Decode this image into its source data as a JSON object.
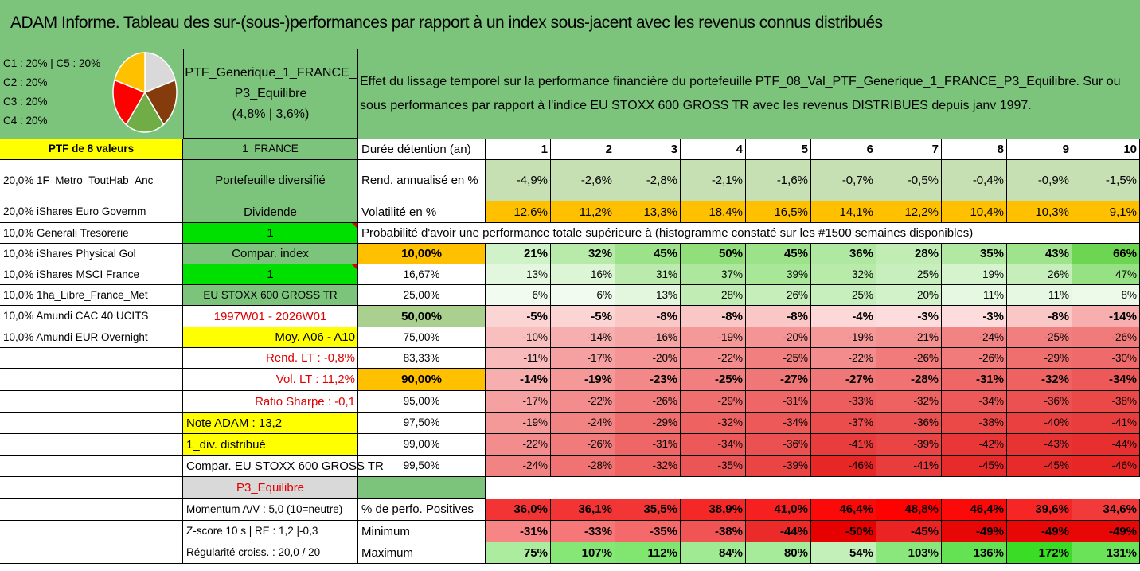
{
  "title": "ADAM Informe. Tableau des sur-(sous-)performances par rapport à un index sous-jacent avec les revenus connus distribués",
  "legend": [
    "C1 : 20% | C5 : 20%",
    "C2 : 20%",
    "C3 : 20%",
    "C4 : 20%"
  ],
  "pie": [
    {
      "name": "C1",
      "value": 20,
      "color": "#d9d9d9"
    },
    {
      "name": "C2",
      "value": 20,
      "color": "#843c0c"
    },
    {
      "name": "C3",
      "value": 20,
      "color": "#70ad47"
    },
    {
      "name": "C4",
      "value": 20,
      "color": "#ff0000"
    },
    {
      "name": "C5",
      "value": 20,
      "color": "#ffc000"
    }
  ],
  "portfolio": {
    "line1": "PTF_Generique_1_FRANCE_",
    "line2": "P3_Equilibre",
    "line3": "(4,8% | 3,6%)"
  },
  "effet": "Effet du lissage temporel sur la performance financière du portefeuille PTF_08_Val_PTF_Generique_1_FRANCE_P3_Equilibre. Sur ou sous performances par rapport à l'indice EU STOXX 600 GROSS TR avec les revenus DISTRIBUES depuis janv 1997.",
  "col_a": [
    "PTF de 8 valeurs",
    "20,0% 1F_Metro_ToutHab_Anc",
    "20,0% iShares Euro Governm",
    "10,0% Generali Tresorerie",
    "10,0% iShares Physical Gol",
    "10,0% iShares MSCI France",
    "10,0% 1ha_Libre_France_Met",
    "10,0% Amundi CAC 40 UCITS",
    "10,0% Amundi EUR Overnight"
  ],
  "col_b": [
    "1_FRANCE",
    "Portefeuille diversifié",
    "Dividende",
    "1",
    "Compar. index",
    "1",
    "EU STOXX 600 GROSS TR",
    "1997W01 - 2026W01",
    "Moy. A06 - A10",
    "Rend. LT : -0,8%",
    "Vol. LT : 11,2%",
    "Ratio Sharpe : -0,1",
    "Note ADAM : 13,2",
    "1_div. distribué",
    "Compar. EU STOXX 600 GROSS TR",
    "P3_Equilibre",
    "Momentum A/V : 5,0 (10=neutre)",
    "Z-score 10 s | RE : 1,2 |-0,3",
    "Régularité croiss. : 20,0 / 20"
  ],
  "colors": {
    "green": "#7cc47b",
    "yellow": "#ffff00",
    "orange": "#ffc000",
    "brightgreen": "#00e000",
    "lightgreen": "#c6e0b4",
    "midgreen": "#a9d08e"
  },
  "durations_label": "Durée détention (an)",
  "durations": [
    "1",
    "2",
    "3",
    "4",
    "5",
    "6",
    "7",
    "8",
    "9",
    "10"
  ],
  "rend_label": "Rend. annualisé en %",
  "rend": [
    "-4,9%",
    "-2,6%",
    "-2,8%",
    "-2,1%",
    "-1,6%",
    "-0,7%",
    "-0,5%",
    "-0,4%",
    "-0,9%",
    "-1,5%"
  ],
  "vol_label": "Volatilité en %",
  "vol": [
    "12,6%",
    "11,2%",
    "13,3%",
    "18,4%",
    "16,5%",
    "14,1%",
    "12,2%",
    "10,4%",
    "10,3%",
    "9,1%"
  ],
  "proba_title": "Probabilité d'avoir une performance totale supérieure à (histogramme constaté sur les #1500 semaines disponibles)",
  "prob_rows": [
    {
      "label": "10,00%",
      "vals": [
        "21%",
        "32%",
        "45%",
        "50%",
        "45%",
        "36%",
        "28%",
        "35%",
        "43%",
        "66%"
      ]
    },
    {
      "label": "16,67%",
      "vals": [
        "13%",
        "16%",
        "31%",
        "37%",
        "39%",
        "32%",
        "25%",
        "19%",
        "26%",
        "47%"
      ]
    },
    {
      "label": "25,00%",
      "vals": [
        "6%",
        "6%",
        "13%",
        "28%",
        "26%",
        "25%",
        "20%",
        "11%",
        "11%",
        "8%"
      ]
    },
    {
      "label": "50,00%",
      "vals": [
        "-5%",
        "-5%",
        "-8%",
        "-8%",
        "-8%",
        "-4%",
        "-3%",
        "-3%",
        "-8%",
        "-14%"
      ]
    },
    {
      "label": "75,00%",
      "vals": [
        "-10%",
        "-14%",
        "-16%",
        "-19%",
        "-20%",
        "-19%",
        "-21%",
        "-24%",
        "-25%",
        "-26%"
      ]
    },
    {
      "label": "83,33%",
      "vals": [
        "-11%",
        "-17%",
        "-20%",
        "-22%",
        "-25%",
        "-22%",
        "-26%",
        "-26%",
        "-29%",
        "-30%"
      ]
    },
    {
      "label": "90,00%",
      "vals": [
        "-14%",
        "-19%",
        "-23%",
        "-25%",
        "-27%",
        "-27%",
        "-28%",
        "-31%",
        "-32%",
        "-34%"
      ]
    },
    {
      "label": "95,00%",
      "vals": [
        "-17%",
        "-22%",
        "-26%",
        "-29%",
        "-31%",
        "-33%",
        "-32%",
        "-34%",
        "-36%",
        "-38%"
      ]
    },
    {
      "label": "97,50%",
      "vals": [
        "-19%",
        "-24%",
        "-29%",
        "-32%",
        "-34%",
        "-37%",
        "-36%",
        "-38%",
        "-40%",
        "-41%"
      ]
    },
    {
      "label": "99,00%",
      "vals": [
        "-22%",
        "-26%",
        "-31%",
        "-34%",
        "-36%",
        "-41%",
        "-39%",
        "-42%",
        "-43%",
        "-44%"
      ]
    },
    {
      "label": "99,50%",
      "vals": [
        "-24%",
        "-28%",
        "-32%",
        "-35%",
        "-39%",
        "-46%",
        "-41%",
        "-45%",
        "-45%",
        "-46%"
      ]
    }
  ],
  "stat_rows": [
    {
      "label": "% de perfo. Positives",
      "vals": [
        "36,0%",
        "36,1%",
        "35,5%",
        "38,9%",
        "41,0%",
        "46,4%",
        "48,8%",
        "46,4%",
        "39,6%",
        "34,6%"
      ]
    },
    {
      "label": "Minimum",
      "vals": [
        "-31%",
        "-33%",
        "-35%",
        "-38%",
        "-44%",
        "-50%",
        "-45%",
        "-49%",
        "-49%",
        "-49%"
      ]
    },
    {
      "label": "Maximum",
      "vals": [
        "75%",
        "107%",
        "112%",
        "84%",
        "80%",
        "54%",
        "103%",
        "136%",
        "172%",
        "131%"
      ]
    }
  ]
}
